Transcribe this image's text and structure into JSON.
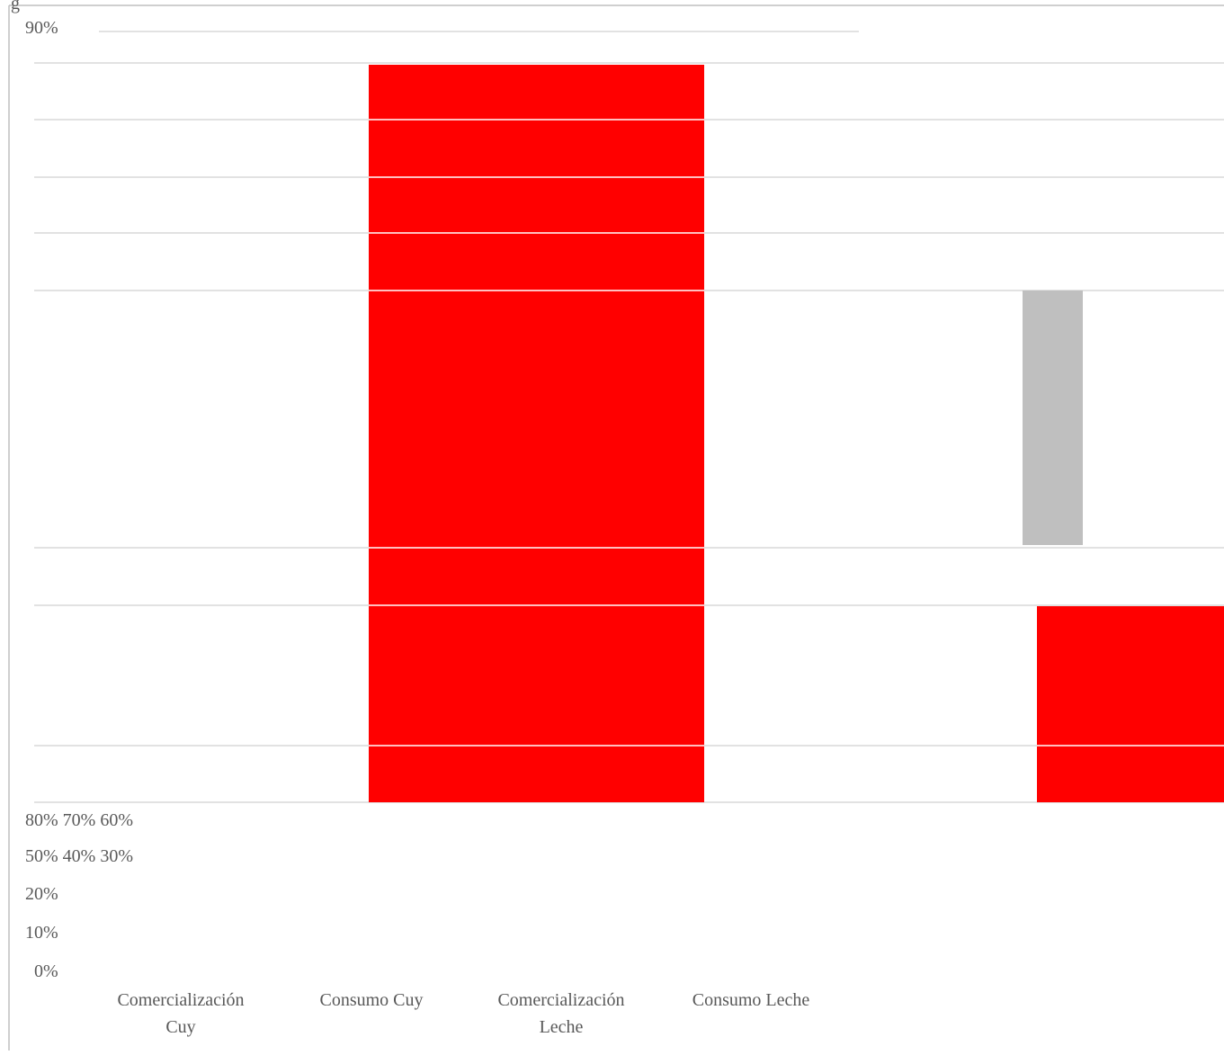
{
  "header": {
    "fragment": "g"
  },
  "tick_labels": [
    "90%",
    "80% 70% 60%",
    "50% 40% 30%",
    "20%",
    "10%",
    "0%"
  ],
  "categories": [
    [
      "Comercialización",
      "Cuy"
    ],
    [
      "Consumo Cuy"
    ],
    [
      "Comercialización",
      "Leche"
    ],
    [
      "Consumo Leche"
    ]
  ]
}
